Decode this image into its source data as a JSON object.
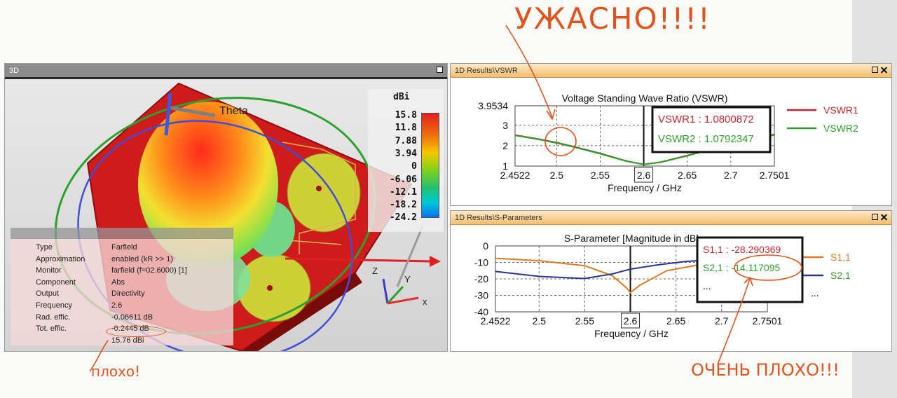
{
  "annotations": {
    "top": "УЖАСНО!!!!",
    "left": "плохо!",
    "right": "ОЧЕНЬ ПЛОХО!!!"
  },
  "win3d": {
    "title": "3D",
    "theta_label": "Theta",
    "axis_labels": {
      "z": "Z",
      "y": "Y",
      "x": "x"
    },
    "colorbar": {
      "unit": "dBi",
      "ticks": [
        "15.8",
        "11.8",
        "7.88",
        "3.94",
        "0",
        "-6.06",
        "-12.1",
        "-18.2",
        "-24.2"
      ],
      "colors_top_to_bottom": [
        "#e02020",
        "#f06a10",
        "#f5c800",
        "#80d020",
        "#20c070",
        "#00c8d8",
        "#0070f0"
      ]
    },
    "info": [
      {
        "key": "Type",
        "value": "Farfield"
      },
      {
        "key": "Approximation",
        "value": "enabled (kR >> 1)"
      },
      {
        "key": "Monitor",
        "value": "farfield (f=02.6000) [1]"
      },
      {
        "key": "Component",
        "value": "Abs"
      },
      {
        "key": "Output",
        "value": "Directivity"
      },
      {
        "key": "Frequency",
        "value": "2.6"
      },
      {
        "key": "Rad. effic.",
        "value": "-0.06611 dB"
      },
      {
        "key": "Tot. effic.",
        "value": "-0.2445 dB"
      },
      {
        "key": "",
        "value": "15.76 dBi"
      }
    ]
  },
  "vswr": {
    "window_title": "1D Results\\VSWR",
    "cursor_box": [
      "VSWR1 : 1.0800872",
      "VSWR2 : 1.0792347"
    ],
    "cursor_x_label": "2.6",
    "chart_data": {
      "type": "line",
      "title": "Voltage Standing Wave Ratio (VSWR)",
      "xlabel": "Frequency / GHz",
      "ylabel": "",
      "xlim": [
        2.4522,
        2.7501
      ],
      "ylim": [
        1,
        3.9534
      ],
      "x_ticks": [
        "2.4522",
        "2.5",
        "2.55",
        "2.6",
        "2.65",
        "2.7",
        "2.7501"
      ],
      "x_tick_values": [
        2.4522,
        2.5,
        2.55,
        2.6,
        2.65,
        2.7,
        2.7501
      ],
      "y_ticks": [
        "1",
        "2",
        "3",
        "3.9534"
      ],
      "y_tick_values": [
        1,
        2,
        3,
        3.9534
      ],
      "grid": true,
      "legend_position": "right",
      "cursor_x": 2.6,
      "series": [
        {
          "name": "VSWR1",
          "color": "#c0282d",
          "x": [
            2.4522,
            2.48,
            2.5,
            2.52,
            2.55,
            2.58,
            2.6,
            2.62,
            2.65,
            2.7,
            2.7501
          ],
          "y": [
            2.52,
            2.32,
            2.15,
            1.95,
            1.62,
            1.25,
            1.08,
            1.2,
            1.52,
            2.1,
            2.55
          ]
        },
        {
          "name": "VSWR2",
          "color": "#2ea02e",
          "x": [
            2.4522,
            2.48,
            2.5,
            2.52,
            2.55,
            2.58,
            2.6,
            2.62,
            2.65,
            2.7,
            2.7501
          ],
          "y": [
            2.5,
            2.3,
            2.13,
            1.93,
            1.6,
            1.24,
            1.08,
            1.19,
            1.5,
            2.08,
            2.52
          ]
        }
      ]
    }
  },
  "sparam": {
    "window_title": "1D Results\\S-Parameters",
    "cursor_box": [
      "S1,1 : -28.290369",
      "S2,1 : -14.117095",
      "..."
    ],
    "cursor_x_label": "2.6",
    "legend_extra": "...",
    "chart_data": {
      "type": "line",
      "title": "S-Parameter [Magnitude in dB]",
      "xlabel": "Frequency / GHz",
      "ylabel": "",
      "xlim": [
        2.4522,
        2.7501
      ],
      "ylim": [
        -40,
        0
      ],
      "x_ticks": [
        "2.4522",
        "2.5",
        "2.55",
        "2.6",
        "2.65",
        "2.7",
        "2.7501"
      ],
      "x_tick_values": [
        2.4522,
        2.5,
        2.55,
        2.6,
        2.65,
        2.7,
        2.7501
      ],
      "y_ticks": [
        "0",
        "-10",
        "-20",
        "-30",
        "-40"
      ],
      "y_tick_values": [
        0,
        -10,
        -20,
        -30,
        -40
      ],
      "grid": true,
      "legend_position": "right",
      "cursor_x": 2.6,
      "series": [
        {
          "name": "S1,1",
          "color": "#e07a20",
          "x": [
            2.4522,
            2.5,
            2.55,
            2.58,
            2.595,
            2.6,
            2.61,
            2.64,
            2.7,
            2.7501
          ],
          "y": [
            -7.5,
            -9,
            -12,
            -18,
            -25,
            -28.3,
            -24,
            -15,
            -9,
            -7
          ]
        },
        {
          "name": "S2,1",
          "color": "#283593",
          "x": [
            2.4522,
            2.5,
            2.55,
            2.58,
            2.6,
            2.63,
            2.66,
            2.7,
            2.7501
          ],
          "y": [
            -15.5,
            -18.5,
            -19.8,
            -17,
            -14.1,
            -11.5,
            -9.5,
            -8,
            -7
          ]
        }
      ]
    }
  }
}
